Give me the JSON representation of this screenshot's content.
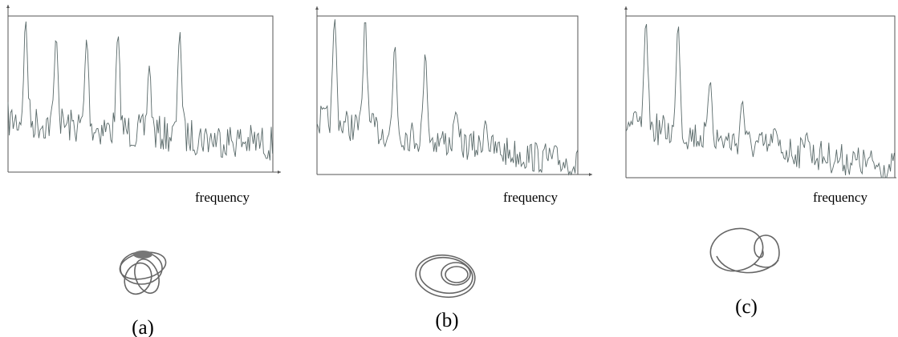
{
  "panels": [
    {
      "x_label": "frequency",
      "caption": "(a)"
    },
    {
      "x_label": "frequency",
      "caption": "(b)"
    },
    {
      "x_label": "frequency",
      "caption": "(c)"
    }
  ]
}
